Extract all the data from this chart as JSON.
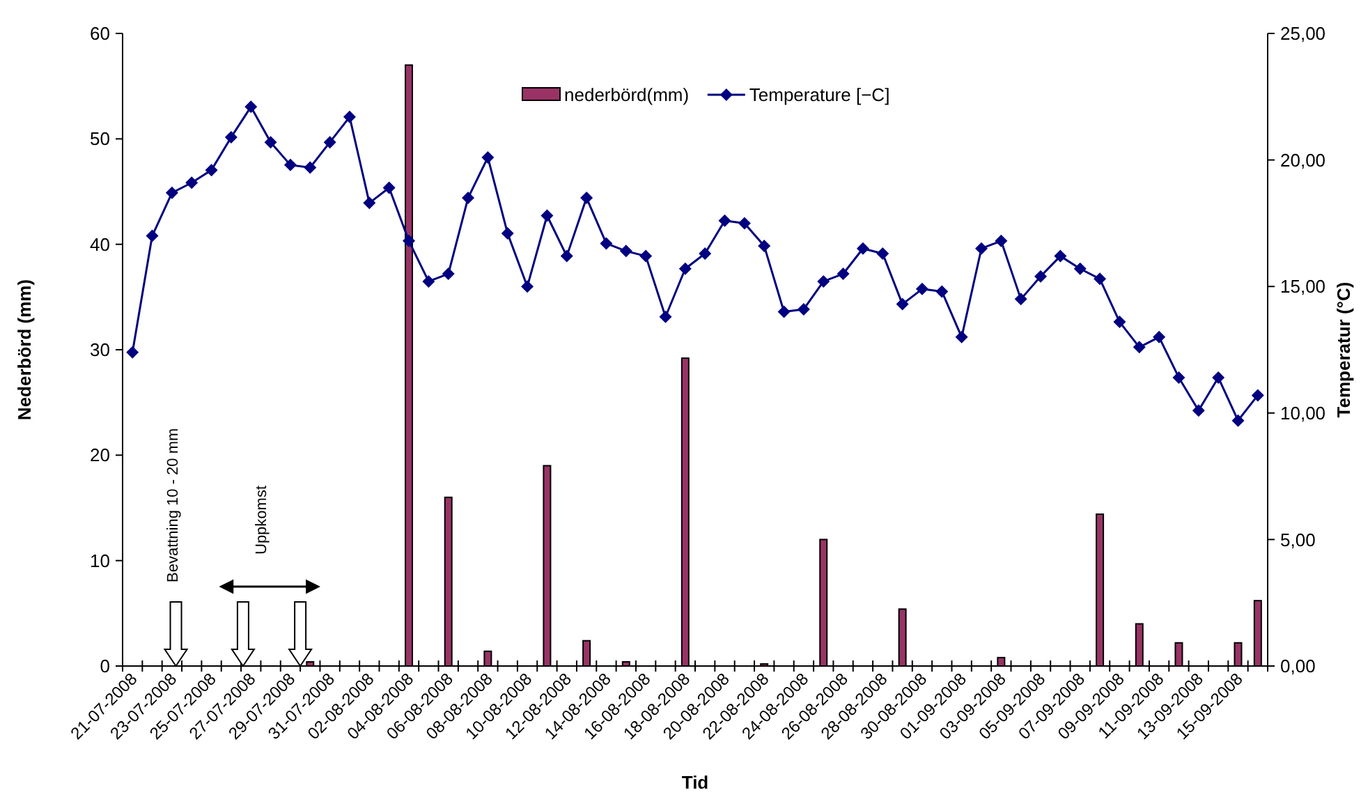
{
  "chart_data": {
    "type": "bar",
    "xlabel": "Tid",
    "ylabel": "Nederbörd (mm)",
    "y2label": "Temperatur (°C)",
    "categories": [
      "21-07-2008",
      null,
      "23-07-2008",
      null,
      "25-07-2008",
      null,
      "27-07-2008",
      null,
      "29-07-2008",
      null,
      "31-07-2008",
      null,
      "02-08-2008",
      null,
      "04-08-2008",
      null,
      "06-08-2008",
      null,
      "08-08-2008",
      null,
      "10-08-2008",
      null,
      "12-08-2008",
      null,
      "14-08-2008",
      null,
      "16-08-2008",
      null,
      "18-08-2008",
      null,
      "20-08-2008",
      null,
      "22-08-2008",
      null,
      "24-08-2008",
      null,
      "26-08-2008",
      null,
      "28-08-2008",
      null,
      "30-08-2008",
      null,
      "01-09-2008",
      null,
      "03-09-2008",
      null,
      "05-09-2008",
      null,
      "07-09-2008",
      null,
      "09-09-2008",
      null,
      "11-09-2008",
      null,
      "13-09-2008",
      null,
      "15-09-2008",
      null
    ],
    "series": [
      {
        "name": "nederbörd(mm)",
        "color": "#993366",
        "values": [
          null,
          null,
          null,
          null,
          null,
          null,
          null,
          null,
          null,
          0.4,
          null,
          null,
          null,
          null,
          57,
          null,
          16,
          null,
          1.4,
          null,
          null,
          19,
          null,
          2.4,
          null,
          0.4,
          null,
          null,
          29.2,
          null,
          null,
          null,
          0.2,
          null,
          null,
          12,
          null,
          null,
          null,
          5.4,
          null,
          null,
          null,
          null,
          0.8,
          null,
          null,
          null,
          null,
          14.4,
          null,
          4,
          null,
          2.2,
          null,
          null,
          2.2,
          6.2
        ]
      },
      {
        "name": "Temperature [−C]",
        "type": "line",
        "axis": "y2",
        "color": "#000080",
        "marker": "diamond",
        "values": [
          12.4,
          17.0,
          18.7,
          19.1,
          19.6,
          20.9,
          22.1,
          20.7,
          19.8,
          19.7,
          20.7,
          21.7,
          18.3,
          18.9,
          16.8,
          15.2,
          15.5,
          18.5,
          20.1,
          17.1,
          15.0,
          17.8,
          16.2,
          18.5,
          16.7,
          16.4,
          16.2,
          13.8,
          15.7,
          16.3,
          17.6,
          17.5,
          16.6,
          14.0,
          14.1,
          15.2,
          15.5,
          16.5,
          16.3,
          14.3,
          14.9,
          14.8,
          13.0,
          16.5,
          16.8,
          14.5,
          15.4,
          16.2,
          15.7,
          15.3,
          13.6,
          12.6,
          13.0,
          11.4,
          10.1,
          11.4,
          9.7,
          10.7
        ]
      }
    ],
    "ylim": [
      0,
      60
    ],
    "yticks": [
      0,
      10,
      20,
      30,
      40,
      50,
      60
    ],
    "y2lim": [
      0,
      25
    ],
    "y2ticks": [
      {
        "value": 0,
        "label": "0,00"
      },
      {
        "value": 5,
        "label": "5,00"
      },
      {
        "value": 10,
        "label": "10,00"
      },
      {
        "value": 15,
        "label": "15,00"
      },
      {
        "value": 20,
        "label": "20,00"
      },
      {
        "value": 25,
        "label": "25,00"
      }
    ],
    "legend": "top",
    "grid": false,
    "annotations": [
      "Bevattning 10 - 20 mm",
      "Uppkomst"
    ]
  }
}
